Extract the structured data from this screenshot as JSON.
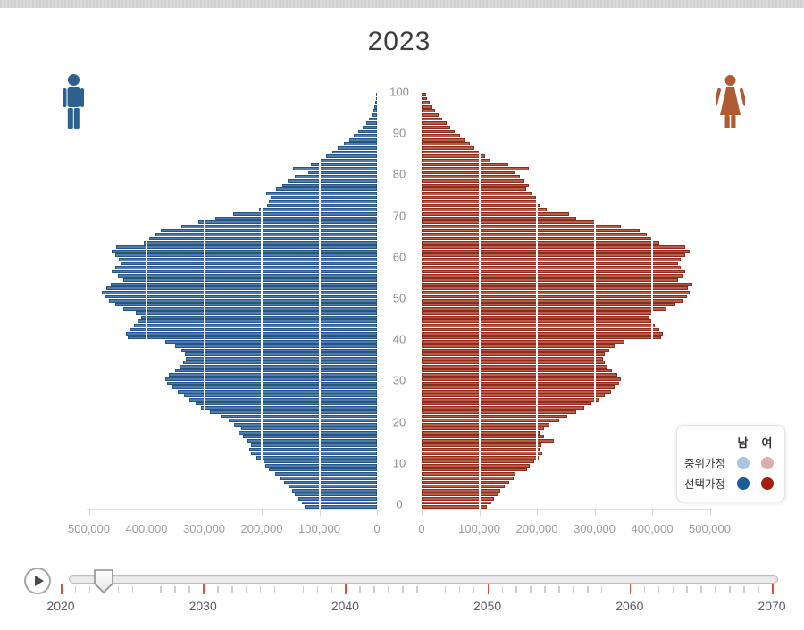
{
  "title": "2023",
  "chart_data": {
    "type": "bar",
    "subtype": "population-pyramid",
    "title": "2023",
    "age_axis": {
      "min": 0,
      "max": 100,
      "ticks": [
        0,
        10,
        20,
        30,
        40,
        50,
        60,
        70,
        80,
        90,
        100
      ]
    },
    "x_axis": {
      "left_ticks": [
        "500,000",
        "400,000",
        "300,000",
        "200,000",
        "100,000",
        "0"
      ],
      "right_ticks": [
        "0",
        "100,000",
        "200,000",
        "300,000",
        "400,000",
        "500,000"
      ],
      "max_value": 500000,
      "grid_interval": 100000
    },
    "series": [
      {
        "name": "남 선택가정",
        "side": "left",
        "fill": "#4e7bb0",
        "border": "#26567f",
        "values": [
          125000,
          130000,
          136000,
          142000,
          148000,
          154000,
          162000,
          169000,
          176000,
          188000,
          194000,
          197000,
          210000,
          219000,
          222000,
          218000,
          225000,
          232000,
          240000,
          235000,
          248000,
          258000,
          271000,
          290000,
          305000,
          315000,
          325000,
          335000,
          345000,
          355000,
          365000,
          368000,
          362000,
          350000,
          342000,
          336000,
          332000,
          334000,
          340000,
          350000,
          368000,
          433000,
          436000,
          430000,
          422000,
          415000,
          410000,
          418000,
          440000,
          455000,
          465000,
          472000,
          478000,
          470000,
          462000,
          440000,
          450000,
          460000,
          455000,
          445000,
          448000,
          455000,
          460000,
          452000,
          405000,
          395000,
          385000,
          375000,
          340000,
          310000,
          280000,
          250000,
          205000,
          190000,
          188000,
          185000,
          192000,
          175000,
          165000,
          155000,
          142000,
          120000,
          145000,
          115000,
          100000,
          88000,
          78000,
          68000,
          58000,
          48000,
          40000,
          32000,
          25000,
          19000,
          14000,
          10000,
          7000,
          5000,
          3000,
          2000,
          2000
        ]
      },
      {
        "name": "여 선택가정",
        "side": "right",
        "fill": "#b85c48",
        "border": "#8c2c1a",
        "values": [
          113000,
          121000,
          126000,
          132000,
          136000,
          144000,
          152000,
          160000,
          163000,
          183000,
          188000,
          195000,
          203000,
          209000,
          205000,
          208000,
          229000,
          212000,
          205000,
          213000,
          222000,
          238000,
          252000,
          268000,
          282000,
          295000,
          308000,
          318000,
          328000,
          335000,
          342000,
          345000,
          340000,
          330000,
          322000,
          318000,
          315000,
          318000,
          325000,
          335000,
          352000,
          415000,
          418000,
          412000,
          405000,
          398000,
          395000,
          402000,
          425000,
          440000,
          452000,
          460000,
          465000,
          462000,
          470000,
          445000,
          452000,
          458000,
          450000,
          445000,
          450000,
          458000,
          465000,
          458000,
          412000,
          400000,
          390000,
          378000,
          346000,
          300000,
          268000,
          256000,
          217000,
          205000,
          200000,
          198000,
          190000,
          182000,
          186000,
          178000,
          170000,
          162000,
          186000,
          150000,
          119000,
          110000,
          101000,
          92000,
          83000,
          74000,
          66000,
          57000,
          50000,
          43000,
          36000,
          30000,
          24000,
          19000,
          14000,
          10000,
          8000
        ]
      }
    ]
  },
  "legend": {
    "col_headers": {
      "male": "남",
      "female": "여"
    },
    "rows": [
      {
        "label": "중위가정",
        "male_color": "#a9c6e0",
        "female_color": "#ddafa8"
      },
      {
        "label": "선택가정",
        "male_color": "#1e5b97",
        "female_color": "#a3220f"
      }
    ]
  },
  "icons": {
    "male_color": "#2c618f",
    "female_color": "#b05c33"
  },
  "timeline": {
    "min_year": 2020,
    "max_year": 2070,
    "current_year": 2023,
    "decade_labels": [
      "2020",
      "2030",
      "2040",
      "2050",
      "2060",
      "2070"
    ],
    "decade_tick_color": "#e0503a",
    "year_tick_color": "#cccccc"
  }
}
